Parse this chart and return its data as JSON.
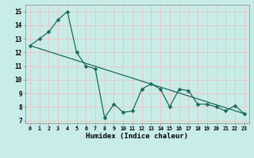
{
  "xlabel": "Humidex (Indice chaleur)",
  "bg_color": "#c8ece8",
  "grid_color": "#e8c8c8",
  "line_color": "#1a6b5a",
  "marker_style": "D",
  "marker_size": 2.5,
  "xlim": [
    -0.5,
    23.5
  ],
  "ylim": [
    6.8,
    15.5
  ],
  "yticks": [
    7,
    8,
    9,
    10,
    11,
    12,
    13,
    14,
    15
  ],
  "xticks": [
    0,
    1,
    2,
    3,
    4,
    5,
    6,
    7,
    8,
    9,
    10,
    11,
    12,
    13,
    14,
    15,
    16,
    17,
    18,
    19,
    20,
    21,
    22,
    23
  ],
  "series1_x": [
    0,
    1,
    2,
    3,
    4,
    5,
    6,
    7,
    8,
    9,
    10,
    11,
    12,
    13,
    14,
    15,
    16,
    17,
    18,
    19,
    20,
    21,
    22,
    23
  ],
  "series1_y": [
    12.5,
    13.0,
    13.5,
    14.4,
    15.0,
    12.0,
    11.0,
    10.8,
    7.2,
    8.2,
    7.6,
    7.7,
    9.3,
    9.7,
    9.3,
    8.0,
    9.3,
    9.2,
    8.2,
    8.2,
    8.0,
    7.7,
    8.1,
    7.5
  ],
  "series2_x": [
    0,
    23
  ],
  "series2_y": [
    12.5,
    7.5
  ]
}
